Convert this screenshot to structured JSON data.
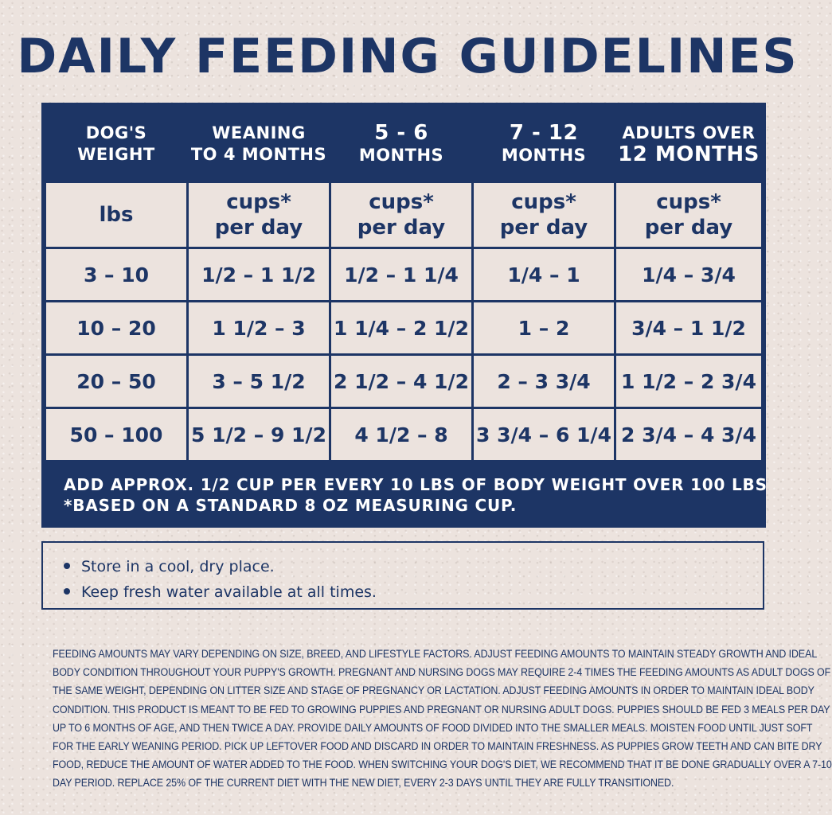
{
  "title": "DAILY FEEDING GUIDELINES",
  "table": {
    "headers": [
      {
        "line1": "DOG'S",
        "line2": "WEIGHT"
      },
      {
        "line1": "WEANING",
        "line2": "TO 4 MONTHS"
      },
      {
        "line1": "5 - 6",
        "line2": "MONTHS"
      },
      {
        "line1": "7 - 12",
        "line2": "MONTHS"
      },
      {
        "line1": "ADULTS OVER",
        "line2": "12 MONTHS"
      }
    ],
    "units": [
      {
        "line1": "lbs",
        "line2": ""
      },
      {
        "line1": "cups*",
        "line2": "per day"
      },
      {
        "line1": "cups*",
        "line2": "per day"
      },
      {
        "line1": "cups*",
        "line2": "per day"
      },
      {
        "line1": "cups*",
        "line2": "per day"
      }
    ],
    "rows": [
      [
        "3 – 10",
        "1/2 – 1 1/2",
        "1/2 – 1 1/4",
        "1/4 – 1",
        "1/4 – 3/4"
      ],
      [
        "10 – 20",
        "1 1/2 – 3",
        "1 1/4 – 2 1/2",
        "1 – 2",
        "3/4 – 1 1/2"
      ],
      [
        "20 – 50",
        "3 – 5 1/2",
        "2 1/2 – 4 1/2",
        "2 – 3 3/4",
        "1 1/2 – 2 3/4"
      ],
      [
        "50 – 100",
        "5 1/2 – 9 1/2",
        "4 1/2 – 8",
        "3 3/4 – 6 1/4",
        "2 3/4 – 4 3/4"
      ]
    ],
    "footer_line1": "ADD APPROX. 1/2 CUP PER EVERY 10 LBS OF BODY WEIGHT OVER 100 LBS",
    "footer_line2": "*BASED ON A STANDARD 8 OZ MEASURING CUP."
  },
  "tips": [
    "Store in a cool, dry place.",
    "Keep fresh water available at all times."
  ],
  "fineprint_lines": [
    "FEEDING AMOUNTS MAY VARY DEPENDING ON SIZE, BREED, AND LIFESTYLE FACTORS. ADJUST FEEDING AMOUNTS TO MAINTAIN STEADY GROWTH AND IDEAL",
    "BODY CONDITION THROUGHOUT YOUR PUPPY'S GROWTH. PREGNANT AND NURSING DOGS MAY REQUIRE 2-4 TIMES THE FEEDING AMOUNTS AS ADULT DOGS OF",
    "THE SAME WEIGHT, DEPENDING ON LITTER SIZE AND STAGE OF PREGNANCY OR LACTATION. ADJUST FEEDING AMOUNTS IN ORDER TO MAINTAIN IDEAL BODY",
    "CONDITION. THIS PRODUCT IS MEANT TO BE FED TO GROWING PUPPIES AND PREGNANT OR NURSING ADULT DOGS. PUPPIES SHOULD BE FED 3 MEALS PER DAY",
    "UP TO 6 MONTHS OF AGE, AND THEN TWICE A DAY. PROVIDE DAILY AMOUNTS OF FOOD DIVIDED INTO THE SMALLER MEALS. MOISTEN FOOD UNTIL JUST SOFT",
    "FOR THE EARLY WEANING PERIOD. PICK UP LEFTOVER FOOD AND DISCARD IN ORDER TO MAINTAIN FRESHNESS. AS PUPPIES GROW TEETH AND CAN BITE DRY",
    "FOOD, REDUCE THE AMOUNT OF WATER ADDED TO THE FOOD. WHEN SWITCHING YOUR DOG'S DIET, WE RECOMMEND THAT IT BE DONE GRADUALLY OVER A 7-10",
    "DAY PERIOD. REPLACE 25% OF THE CURRENT DIET WITH THE NEW DIET, EVERY 2-3 DAYS UNTIL THEY ARE FULLY TRANSITIONED."
  ],
  "colors": {
    "navy": "#1d3565",
    "background": "#ece3de",
    "header_text": "#ffffff"
  }
}
